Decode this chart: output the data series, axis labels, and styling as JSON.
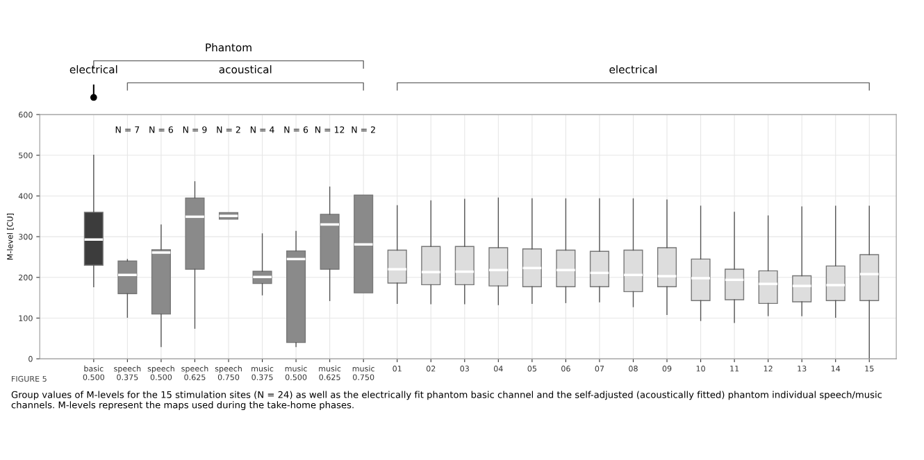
{
  "chart_data": {
    "type": "box",
    "ylabel": "M-level [CU]",
    "ylim": [
      0,
      600
    ],
    "yticks": [
      0,
      100,
      200,
      300,
      400,
      500,
      600
    ],
    "grid": true,
    "categories": [
      "basic\n0.500",
      "speech\n0.375",
      "speech\n0.500",
      "speech\n0.625",
      "speech\n0.750",
      "music\n0.375",
      "music\n0.500",
      "music\n0.625",
      "music\n0.750",
      "01",
      "02",
      "03",
      "04",
      "05",
      "06",
      "07",
      "08",
      "09",
      "10",
      "11",
      "12",
      "13",
      "14",
      "15"
    ],
    "colors": [
      "#3c3c3c",
      "#8a8a8a",
      "#8a8a8a",
      "#8a8a8a",
      "#8a8a8a",
      "#8a8a8a",
      "#8a8a8a",
      "#8a8a8a",
      "#8a8a8a",
      "#dddddd",
      "#dddddd",
      "#dddddd",
      "#dddddd",
      "#dddddd",
      "#dddddd",
      "#dddddd",
      "#dddddd",
      "#dddddd",
      "#dddddd",
      "#dddddd",
      "#dddddd",
      "#dddddd",
      "#dddddd",
      "#dddddd"
    ],
    "boxes": [
      {
        "low": 177,
        "q1": 230,
        "median": 293,
        "q3": 360,
        "high": 500
      },
      {
        "low": 102,
        "q1": 160,
        "median": 206,
        "q3": 240,
        "high": 244
      },
      {
        "low": 30,
        "q1": 110,
        "median": 261,
        "q3": 268,
        "high": 329
      },
      {
        "low": 75,
        "q1": 220,
        "median": 349,
        "q3": 395,
        "high": 435
      },
      {
        "low": 343,
        "q1": 343,
        "median": 351,
        "q3": 359,
        "high": 359
      },
      {
        "low": 157,
        "q1": 185,
        "median": 201,
        "q3": 215,
        "high": 307
      },
      {
        "low": 30,
        "q1": 40,
        "median": 245,
        "q3": 265,
        "high": 313
      },
      {
        "low": 143,
        "q1": 220,
        "median": 330,
        "q3": 355,
        "high": 422
      },
      {
        "low": 162,
        "q1": 162,
        "median": 281,
        "q3": 402,
        "high": 402
      },
      {
        "low": 136,
        "q1": 186,
        "median": 220,
        "q3": 267,
        "high": 376
      },
      {
        "low": 135,
        "q1": 182,
        "median": 213,
        "q3": 276,
        "high": 388
      },
      {
        "low": 135,
        "q1": 182,
        "median": 214,
        "q3": 276,
        "high": 392
      },
      {
        "low": 133,
        "q1": 179,
        "median": 218,
        "q3": 273,
        "high": 395
      },
      {
        "low": 136,
        "q1": 177,
        "median": 223,
        "q3": 270,
        "high": 393
      },
      {
        "low": 138,
        "q1": 177,
        "median": 218,
        "q3": 267,
        "high": 393
      },
      {
        "low": 140,
        "q1": 177,
        "median": 211,
        "q3": 264,
        "high": 393
      },
      {
        "low": 128,
        "q1": 165,
        "median": 206,
        "q3": 267,
        "high": 393
      },
      {
        "low": 109,
        "q1": 177,
        "median": 203,
        "q3": 273,
        "high": 390
      },
      {
        "low": 94,
        "q1": 143,
        "median": 198,
        "q3": 245,
        "high": 375
      },
      {
        "low": 89,
        "q1": 145,
        "median": 194,
        "q3": 220,
        "high": 360
      },
      {
        "low": 106,
        "q1": 136,
        "median": 184,
        "q3": 216,
        "high": 351
      },
      {
        "low": 106,
        "q1": 140,
        "median": 179,
        "q3": 204,
        "high": 373
      },
      {
        "low": 102,
        "q1": 143,
        "median": 181,
        "q3": 228,
        "high": 375
      },
      {
        "low": 0,
        "q1": 143,
        "median": 208,
        "q3": 256,
        "high": 375
      }
    ],
    "annotations": [
      "Phantom",
      "electrical",
      "acoustical",
      "electrical",
      "N = 7",
      "N = 6",
      "N = 9",
      "N = 2",
      "N = 4",
      "N = 6",
      "N = 12",
      "N = 2",
      "FIGURE 5",
      "Group values of M-levels for the 15 stimulation sites (N = 24) as well as the electrically fit phantom basic channel and the self-adjusted (acoustically fitted) phantom individual speech/music channels. M-levels represent the maps used during the take-home phases."
    ]
  }
}
